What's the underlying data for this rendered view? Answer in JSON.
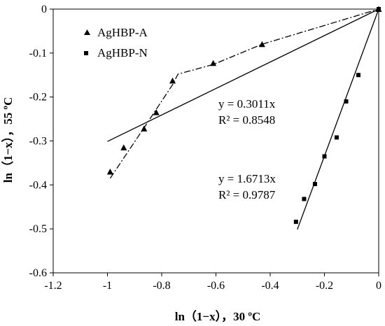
{
  "chart_data": {
    "type": "scatter",
    "title": "",
    "xlabel": "ln（1−x），30 ºC",
    "ylabel": "ln（1−x），55 ºC",
    "xlim": [
      -1.2,
      0
    ],
    "ylim": [
      -0.6,
      0
    ],
    "xticks": [
      -1.2,
      -1,
      -0.8,
      -0.6,
      -0.4,
      -0.2,
      0
    ],
    "xtick_labels": [
      "-1.2",
      "-1",
      "-0.8",
      "-0.6",
      "-0.4",
      "-0.2",
      "0"
    ],
    "yticks": [
      0,
      -0.1,
      -0.2,
      -0.3,
      -0.4,
      -0.5,
      -0.6
    ],
    "ytick_labels": [
      "0",
      "-0.1",
      "-0.2",
      "-0.3",
      "-0.4",
      "-0.5",
      "-0.6"
    ],
    "grid": false,
    "legend_position": "top-left",
    "series": [
      {
        "name": "AgHBP-A",
        "marker": "triangle",
        "color": "#000000",
        "x": [
          -0.99,
          -0.94,
          -0.865,
          -0.82,
          -0.76,
          -0.61,
          -0.43,
          0
        ],
        "y": [
          -0.37,
          -0.315,
          -0.272,
          -0.235,
          -0.163,
          -0.123,
          -0.08,
          0
        ],
        "connector": "dash-dot",
        "connector_x": [
          -0.99,
          -0.865,
          -0.76,
          -0.74,
          -0.61,
          -0.43,
          0
        ],
        "connector_y": [
          -0.385,
          -0.27,
          -0.172,
          -0.148,
          -0.126,
          -0.08,
          0
        ],
        "trendline": {
          "equation": "y = 0.3011x",
          "r2": "R² = 0.8548",
          "slope": 0.3011,
          "x_range": [
            -1,
            0
          ]
        }
      },
      {
        "name": "AgHBP-N",
        "marker": "square",
        "color": "#000000",
        "x": [
          -0.305,
          -0.275,
          -0.235,
          -0.2,
          -0.155,
          -0.12,
          -0.075,
          0
        ],
        "y": [
          -0.484,
          -0.432,
          -0.398,
          -0.335,
          -0.292,
          -0.21,
          -0.15,
          0
        ],
        "trendline": {
          "equation": "y = 1.6713x",
          "r2": "R² = 0.9787",
          "slope": 1.6713,
          "x_range": [
            -0.3,
            0
          ]
        }
      }
    ]
  }
}
